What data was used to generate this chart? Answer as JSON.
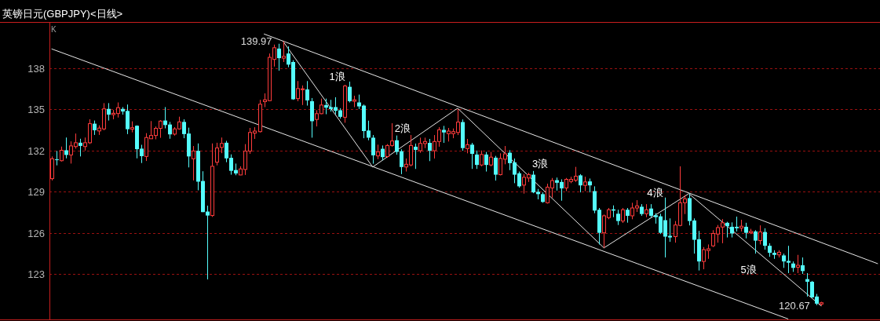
{
  "chart_data": {
    "type": "candlestick",
    "title": "英镑日元(GBPJPY)<日线>",
    "categories": [
      null,
      null,
      null,
      null,
      null,
      null,
      null,
      null,
      null,
      null,
      null,
      null,
      null,
      null,
      null,
      null,
      null,
      null,
      null,
      null,
      null,
      null,
      null,
      null,
      null,
      null,
      null,
      null,
      null,
      null,
      null,
      null,
      null,
      null,
      null,
      null,
      null,
      null,
      null,
      null,
      null,
      null,
      null,
      null,
      null,
      null,
      null,
      null,
      null,
      null,
      null,
      null,
      null,
      null,
      null,
      null,
      null,
      null,
      null,
      null,
      null,
      null,
      null,
      null,
      null,
      null,
      null,
      null,
      null,
      null,
      null,
      null,
      null,
      null,
      null,
      null,
      null,
      null,
      null,
      null,
      null,
      null,
      null,
      null,
      null,
      null,
      null,
      null,
      null,
      null,
      null,
      null,
      null,
      null,
      null,
      null,
      null,
      null,
      null,
      null,
      null,
      null,
      null,
      null,
      null,
      null,
      null,
      null,
      null,
      null,
      null,
      null,
      null,
      null,
      null,
      null,
      null,
      null,
      null,
      null,
      null,
      null,
      null,
      null,
      null,
      null,
      null,
      null,
      null,
      null,
      null,
      null,
      null,
      null,
      null,
      null,
      null,
      null,
      null,
      null,
      null,
      null,
      null,
      null,
      null,
      null,
      null,
      null,
      null,
      null,
      null,
      null,
      null,
      null,
      null,
      null,
      null,
      null,
      null,
      null,
      null,
      null,
      null,
      null,
      null,
      null,
      null,
      null,
      null,
      null,
      null,
      null,
      null,
      null,
      null,
      null
    ],
    "ohlc": [
      [
        129.95,
        131.57,
        129.82,
        131.4
      ],
      [
        131.36,
        131.97,
        130.92,
        131.3
      ],
      [
        131.26,
        132.29,
        131.2,
        132.02
      ],
      [
        132.02,
        132.95,
        131.43,
        131.68
      ],
      [
        131.68,
        132.67,
        131.05,
        132.34
      ],
      [
        132.29,
        133.24,
        132.14,
        132.57
      ],
      [
        132.57,
        132.86,
        131.57,
        132.34
      ],
      [
        132.29,
        132.95,
        132.0,
        132.57
      ],
      [
        132.57,
        134.28,
        132.48,
        133.96
      ],
      [
        133.96,
        134.19,
        133.14,
        133.48
      ],
      [
        133.43,
        133.84,
        133.14,
        133.64
      ],
      [
        133.58,
        135.46,
        133.48,
        135.04
      ],
      [
        135.04,
        135.46,
        134.19,
        134.62
      ],
      [
        134.62,
        134.96,
        134.28,
        134.72
      ],
      [
        134.7,
        135.51,
        134.41,
        135.13
      ],
      [
        135.04,
        135.17,
        134.62,
        134.85
      ],
      [
        134.89,
        135.36,
        133.2,
        133.56
      ],
      [
        133.56,
        134.13,
        133.33,
        133.67
      ],
      [
        133.81,
        133.84,
        131.43,
        132.1
      ],
      [
        132.14,
        132.42,
        131.09,
        131.59
      ],
      [
        131.57,
        133.27,
        131.24,
        132.95
      ],
      [
        132.86,
        134.15,
        132.86,
        133.1
      ],
      [
        133.1,
        133.75,
        132.82,
        133.62
      ],
      [
        133.62,
        134.22,
        132.93,
        134.15
      ],
      [
        134.19,
        135.17,
        133.62,
        133.86
      ],
      [
        133.9,
        134.09,
        132.86,
        133.18
      ],
      [
        133.2,
        133.71,
        133.09,
        133.58
      ],
      [
        133.58,
        134.47,
        133.52,
        134.09
      ],
      [
        134.09,
        134.28,
        132.9,
        133.2
      ],
      [
        133.24,
        133.67,
        130.77,
        131.57
      ],
      [
        131.4,
        132.33,
        129.82,
        131.97
      ],
      [
        131.98,
        132.52,
        129.1,
        129.73
      ],
      [
        129.78,
        130.49,
        127.51,
        127.51
      ],
      [
        127.55,
        127.98,
        122.6,
        127.26
      ],
      [
        127.26,
        132.52,
        127.16,
        130.85
      ],
      [
        131.15,
        132.57,
        130.92,
        132.19
      ],
      [
        132.23,
        132.95,
        131.81,
        132.52
      ],
      [
        132.57,
        132.71,
        131.15,
        131.43
      ],
      [
        131.47,
        131.72,
        130.24,
        130.52
      ],
      [
        130.58,
        131.05,
        130.2,
        130.33
      ],
      [
        130.22,
        130.85,
        130.2,
        130.66
      ],
      [
        130.62,
        132.47,
        130.22,
        131.96
      ],
      [
        131.96,
        133.65,
        131.76,
        133.32
      ],
      [
        133.27,
        133.7,
        132.85,
        133.42
      ],
      [
        133.38,
        135.7,
        133.32,
        135.38
      ],
      [
        135.57,
        136.17,
        135.17,
        135.7
      ],
      [
        135.64,
        139.08,
        135.6,
        138.8
      ],
      [
        138.65,
        139.73,
        138.13,
        139.5
      ],
      [
        139.44,
        139.79,
        137.83,
        138.74
      ],
      [
        138.74,
        139.97,
        138.46,
        138.87
      ],
      [
        139.08,
        139.6,
        138.08,
        138.27
      ],
      [
        138.46,
        138.59,
        135.7,
        135.74
      ],
      [
        135.79,
        137.07,
        135.6,
        136.52
      ],
      [
        136.46,
        136.75,
        135.32,
        136.5
      ],
      [
        136.46,
        137.07,
        135.28,
        135.66
      ],
      [
        135.6,
        135.83,
        132.94,
        134.14
      ],
      [
        134.27,
        134.94,
        133.76,
        134.69
      ],
      [
        134.69,
        135.79,
        134.65,
        135.32
      ],
      [
        135.32,
        135.79,
        134.65,
        135.13
      ],
      [
        135.17,
        135.7,
        134.84,
        135.03
      ],
      [
        135.17,
        135.89,
        134.65,
        134.9
      ],
      [
        134.94,
        135.09,
        134.33,
        134.46
      ],
      [
        134.43,
        136.8,
        134.03,
        136.71
      ],
      [
        136.65,
        137.03,
        135.51,
        135.6
      ],
      [
        135.6,
        136.0,
        135.17,
        135.7
      ],
      [
        135.51,
        136.08,
        135.03,
        135.22
      ],
      [
        135.28,
        135.36,
        132.9,
        133.42
      ],
      [
        133.46,
        134.18,
        132.75,
        132.94
      ],
      [
        132.94,
        133.13,
        131.04,
        131.65
      ],
      [
        131.61,
        132.43,
        131.37,
        131.9
      ],
      [
        132.13,
        132.37,
        131.29,
        131.52
      ],
      [
        131.56,
        132.47,
        131.48,
        132.37
      ],
      [
        132.37,
        133.99,
        132.28,
        132.7
      ],
      [
        132.75,
        133.1,
        131.7,
        131.9
      ],
      [
        131.95,
        132.09,
        130.28,
        130.8
      ],
      [
        130.8,
        131.42,
        130.47,
        131.0
      ],
      [
        130.95,
        133.13,
        130.85,
        132.37
      ],
      [
        132.28,
        132.51,
        130.66,
        132.05
      ],
      [
        131.99,
        132.94,
        131.84,
        132.52
      ],
      [
        132.51,
        132.94,
        132.18,
        132.66
      ],
      [
        132.56,
        132.85,
        131.23,
        131.99
      ],
      [
        131.99,
        133.13,
        131.42,
        132.66
      ],
      [
        132.66,
        133.7,
        132.28,
        133.51
      ],
      [
        133.51,
        133.8,
        132.56,
        133.32
      ],
      [
        133.23,
        133.65,
        132.66,
        133.42
      ],
      [
        133.23,
        133.61,
        132.9,
        133.38
      ],
      [
        133.32,
        135.03,
        133.13,
        134.08
      ],
      [
        134.08,
        134.27,
        131.99,
        132.18
      ],
      [
        132.14,
        132.85,
        131.8,
        132.43
      ],
      [
        132.43,
        132.56,
        130.66,
        131.76
      ],
      [
        131.71,
        132.0,
        130.66,
        130.95
      ],
      [
        130.95,
        132.0,
        130.85,
        131.71
      ],
      [
        131.71,
        131.9,
        130.47,
        130.95
      ],
      [
        130.95,
        131.9,
        130.85,
        131.52
      ],
      [
        131.48,
        131.61,
        129.81,
        130.24
      ],
      [
        130.24,
        131.8,
        130.19,
        131.42
      ],
      [
        131.37,
        132.33,
        131.0,
        131.76
      ],
      [
        131.84,
        132.03,
        130.57,
        131.08
      ],
      [
        131.14,
        131.42,
        129.62,
        130.24
      ],
      [
        130.34,
        130.47,
        129.29,
        129.39
      ],
      [
        129.48,
        130.28,
        128.86,
        130.05
      ],
      [
        130.0,
        130.38,
        129.71,
        130.24
      ],
      [
        130.24,
        130.51,
        128.89,
        128.95
      ],
      [
        128.99,
        129.2,
        128.44,
        128.82
      ],
      [
        128.82,
        128.95,
        128.19,
        128.25
      ],
      [
        128.19,
        129.58,
        128.13,
        129.33
      ],
      [
        129.27,
        130.0,
        128.57,
        129.81
      ],
      [
        129.84,
        130.03,
        129.08,
        129.65
      ],
      [
        129.71,
        129.9,
        128.34,
        129.24
      ],
      [
        129.27,
        130.0,
        129.04,
        129.9
      ],
      [
        129.75,
        130.09,
        129.62,
        129.9
      ],
      [
        129.84,
        130.81,
        129.71,
        130.13
      ],
      [
        130.19,
        130.28,
        128.95,
        129.46
      ],
      [
        129.46,
        130.09,
        129.04,
        129.71
      ],
      [
        129.75,
        129.96,
        128.95,
        129.46
      ],
      [
        129.04,
        129.39,
        127.43,
        127.62
      ],
      [
        127.68,
        127.81,
        125.15,
        126.0
      ],
      [
        126.0,
        127.33,
        124.9,
        127.24
      ],
      [
        127.11,
        127.81,
        126.99,
        127.68
      ],
      [
        127.71,
        128.0,
        127.14,
        127.62
      ],
      [
        127.39,
        127.68,
        126.57,
        126.86
      ],
      [
        126.86,
        127.81,
        126.72,
        127.68
      ],
      [
        127.68,
        127.81,
        126.74,
        127.24
      ],
      [
        127.24,
        128.19,
        126.99,
        127.81
      ],
      [
        127.81,
        128.38,
        127.52,
        127.96
      ],
      [
        127.9,
        128.09,
        127.24,
        127.37
      ],
      [
        127.39,
        128.09,
        127.14,
        127.68
      ],
      [
        127.77,
        128.09,
        127.14,
        127.24
      ],
      [
        127.28,
        127.43,
        126.67,
        127.14
      ],
      [
        127.2,
        127.39,
        125.91,
        126.0
      ],
      [
        126.92,
        128.57,
        124.2,
        125.72
      ],
      [
        125.78,
        127.05,
        125.34,
        125.66
      ],
      [
        125.72,
        126.86,
        125.28,
        126.57
      ],
      [
        126.54,
        130.85,
        126.48,
        128.19
      ],
      [
        128.19,
        128.76,
        127.37,
        128.48
      ],
      [
        128.53,
        128.82,
        126.54,
        126.86
      ],
      [
        126.9,
        127.05,
        124.48,
        125.49
      ],
      [
        125.53,
        126.14,
        123.25,
        123.91
      ],
      [
        123.91,
        124.96,
        123.34,
        124.77
      ],
      [
        124.71,
        125.15,
        124.1,
        124.83
      ],
      [
        125.05,
        126.19,
        124.96,
        125.95
      ],
      [
        125.91,
        126.57,
        125.28,
        126.38
      ],
      [
        126.42,
        127.0,
        125.24,
        126.73
      ],
      [
        126.73,
        126.8,
        125.66,
        126.48
      ],
      [
        126.44,
        126.76,
        125.66,
        125.95
      ],
      [
        126.44,
        127.18,
        126.1,
        126.33
      ],
      [
        126.35,
        126.95,
        126.1,
        126.48
      ],
      [
        126.44,
        126.73,
        125.59,
        126.0
      ],
      [
        126.0,
        126.29,
        125.91,
        126.1
      ],
      [
        126.1,
        126.19,
        124.48,
        125.43
      ],
      [
        125.43,
        126.54,
        125.15,
        126.06
      ],
      [
        126.06,
        126.33,
        124.77,
        125.05
      ],
      [
        125.05,
        125.24,
        124.25,
        124.54
      ],
      [
        124.54,
        124.73,
        124.1,
        124.39
      ],
      [
        124.39,
        124.73,
        124.2,
        124.58
      ],
      [
        124.35,
        124.48,
        123.44,
        123.91
      ],
      [
        123.95,
        125.05,
        123.06,
        123.82
      ],
      [
        123.76,
        123.91,
        123.15,
        123.44
      ],
      [
        123.49,
        124.39,
        123.06,
        123.63
      ],
      [
        123.63,
        124.2,
        123.0,
        123.21
      ],
      [
        122.62,
        123.06,
        121.35,
        122.43
      ],
      [
        122.43,
        122.49,
        121.25,
        121.29
      ],
      [
        121.35,
        121.54,
        120.72,
        120.83
      ],
      [
        120.8,
        120.97,
        120.67,
        120.9
      ],
      null,
      null,
      null,
      null,
      null,
      null,
      null,
      null,
      null,
      null,
      null,
      null
    ],
    "colors": [
      "#ff3c3c",
      "#54fcfc",
      "#ff3c3c",
      "#54fcfc",
      "#ff3c3c",
      "#ff3c3c",
      "#54fcfc",
      "#ff3c3c",
      "#ff3c3c",
      "#54fcfc",
      "#ff3c3c",
      "#ff3c3c",
      "#54fcfc",
      "#ff3c3c",
      "#ff3c3c",
      "#54fcfc",
      "#54fcfc",
      "#ff3c3c",
      "#54fcfc",
      "#54fcfc",
      "#ff3c3c",
      "#ff3c3c",
      "#ff3c3c",
      "#ff3c3c",
      "#54fcfc",
      "#54fcfc",
      "#ff3c3c",
      "#ff3c3c",
      "#54fcfc",
      "#54fcfc",
      "#ff3c3c",
      "#54fcfc",
      "#54fcfc",
      "#54fcfc",
      "#ff3c3c",
      "#ff3c3c",
      "#ff3c3c",
      "#54fcfc",
      "#54fcfc",
      "#54fcfc",
      "#ff3c3c",
      "#ff3c3c",
      "#ff3c3c",
      "#ff3c3c",
      "#ff3c3c",
      "#ff3c3c",
      "#ff3c3c",
      "#ff3c3c",
      "#54fcfc",
      "#ff3c3c",
      "#54fcfc",
      "#54fcfc",
      "#ff3c3c",
      "#ff3c3c",
      "#54fcfc",
      "#54fcfc",
      "#ff3c3c",
      "#ff3c3c",
      "#54fcfc",
      "#54fcfc",
      "#54fcfc",
      "#54fcfc",
      "#ff3c3c",
      "#54fcfc",
      "#ff3c3c",
      "#54fcfc",
      "#54fcfc",
      "#54fcfc",
      "#54fcfc",
      "#ff3c3c",
      "#54fcfc",
      "#ff3c3c",
      "#ff3c3c",
      "#54fcfc",
      "#54fcfc",
      "#ff3c3c",
      "#ff3c3c",
      "#54fcfc",
      "#ff3c3c",
      "#ff3c3c",
      "#54fcfc",
      "#ff3c3c",
      "#ff3c3c",
      "#54fcfc",
      "#ff3c3c",
      "#ff3c3c",
      "#ff3c3c",
      "#54fcfc",
      "#ff3c3c",
      "#54fcfc",
      "#54fcfc",
      "#ff3c3c",
      "#54fcfc",
      "#ff3c3c",
      "#54fcfc",
      "#ff3c3c",
      "#ff3c3c",
      "#54fcfc",
      "#54fcfc",
      "#54fcfc",
      "#ff3c3c",
      "#ff3c3c",
      "#54fcfc",
      "#54fcfc",
      "#54fcfc",
      "#ff3c3c",
      "#ff3c3c",
      "#54fcfc",
      "#54fcfc",
      "#ff3c3c",
      "#ff3c3c",
      "#ff3c3c",
      "#54fcfc",
      "#ff3c3c",
      "#54fcfc",
      "#54fcfc",
      "#54fcfc",
      "#ff3c3c",
      "#ff3c3c",
      "#54fcfc",
      "#54fcfc",
      "#ff3c3c",
      "#54fcfc",
      "#ff3c3c",
      "#ff3c3c",
      "#54fcfc",
      "#ff3c3c",
      "#54fcfc",
      "#54fcfc",
      "#54fcfc",
      "#54fcfc",
      "#54fcfc",
      "#ff3c3c",
      "#ff3c3c",
      "#ff3c3c",
      "#54fcfc",
      "#54fcfc",
      "#54fcfc",
      "#ff3c3c",
      "#ff3c3c",
      "#ff3c3c",
      "#ff3c3c",
      "#ff3c3c",
      "#54fcfc",
      "#54fcfc",
      "#54fcfc",
      "#ff3c3c",
      "#54fcfc",
      "#ff3c3c",
      "#54fcfc",
      "#ff3c3c",
      "#54fcfc",
      "#54fcfc",
      "#54fcfc",
      "#ff3c3c",
      "#54fcfc",
      "#54fcfc",
      "#54fcfc",
      "#ff3c3c",
      "#54fcfc",
      "#54fcfc",
      "#54fcfc",
      "#54fcfc",
      "#ff3c3c",
      null,
      null,
      null,
      null,
      null,
      null,
      null,
      null,
      null,
      null,
      null,
      null
    ],
    "series": [
      {
        "type": "line",
        "color": "#e8e8e8",
        "values": [
          139.41,
          null,
          null,
          null,
          null,
          null,
          null,
          null,
          null,
          null,
          null,
          null,
          null,
          null,
          null,
          null,
          null,
          null,
          null,
          null,
          null,
          null,
          null,
          null,
          null,
          null,
          null,
          null,
          null,
          null,
          null,
          null,
          null,
          null,
          null,
          null,
          null,
          null,
          null,
          null,
          null,
          null,
          null,
          null,
          null,
          null,
          null,
          null,
          null,
          null,
          null,
          null,
          null,
          null,
          null,
          null,
          null,
          null,
          null,
          null,
          null,
          null,
          null,
          null,
          null,
          null,
          null,
          null,
          null,
          null,
          null,
          null,
          null,
          null,
          null,
          null,
          null,
          null,
          null,
          null,
          null,
          null,
          null,
          null,
          null,
          null,
          null,
          null,
          null,
          null,
          null,
          null,
          null,
          null,
          null,
          null,
          null,
          null,
          null,
          null,
          null,
          null,
          null,
          null,
          null,
          null,
          null,
          null,
          null,
          null,
          null,
          null,
          null,
          null,
          null,
          null,
          null,
          null,
          null,
          null,
          null,
          null,
          null,
          null,
          null,
          null,
          null,
          null,
          null,
          null,
          null,
          null,
          null,
          null,
          null,
          null,
          null,
          null,
          null,
          null,
          null,
          null,
          null,
          null,
          null,
          null,
          null,
          null,
          null,
          null,
          null,
          null,
          null,
          null,
          null,
          null,
          119.72,
          null,
          null,
          null,
          null,
          null,
          null,
          null,
          null,
          null,
          null,
          null,
          null,
          null,
          null,
          null,
          null,
          null,
          null,
          null
        ]
      },
      {
        "type": "line",
        "color": "#e8e8e8",
        "values": [
          null,
          null,
          null,
          null,
          null,
          null,
          null,
          null,
          null,
          null,
          null,
          null,
          null,
          null,
          null,
          null,
          null,
          null,
          null,
          null,
          null,
          null,
          null,
          null,
          null,
          null,
          null,
          null,
          null,
          null,
          null,
          null,
          null,
          null,
          null,
          null,
          null,
          null,
          null,
          null,
          null,
          null,
          null,
          null,
          null,
          140.5,
          null,
          null,
          null,
          null,
          null,
          null,
          null,
          null,
          null,
          null,
          null,
          null,
          null,
          null,
          null,
          null,
          null,
          null,
          null,
          null,
          null,
          null,
          null,
          null,
          null,
          null,
          null,
          null,
          null,
          null,
          null,
          null,
          null,
          null,
          null,
          null,
          null,
          null,
          null,
          null,
          null,
          null,
          null,
          null,
          null,
          null,
          null,
          null,
          null,
          null,
          null,
          null,
          null,
          null,
          null,
          null,
          null,
          null,
          null,
          null,
          null,
          null,
          null,
          null,
          null,
          null,
          null,
          null,
          null,
          null,
          null,
          null,
          null,
          null,
          null,
          null,
          null,
          null,
          null,
          null,
          null,
          null,
          null,
          null,
          null,
          null,
          null,
          null,
          null,
          null,
          null,
          null,
          null,
          null,
          null,
          null,
          null,
          null,
          null,
          null,
          null,
          null,
          null,
          null,
          null,
          null,
          null,
          null,
          null,
          null,
          null,
          null,
          null,
          null,
          null,
          null,
          null,
          null,
          null,
          null,
          null,
          null,
          null,
          null,
          null,
          null,
          null,
          null,
          null,
          123.75
        ]
      },
      {
        "type": "line",
        "color": "#e8e8e8",
        "values": [
          null,
          null,
          null,
          null,
          null,
          null,
          null,
          null,
          null,
          null,
          null,
          null,
          null,
          null,
          null,
          null,
          null,
          null,
          null,
          null,
          null,
          null,
          null,
          null,
          null,
          null,
          null,
          null,
          null,
          null,
          null,
          null,
          null,
          null,
          null,
          null,
          null,
          null,
          null,
          null,
          null,
          null,
          null,
          null,
          null,
          null,
          null,
          null,
          null,
          139.97,
          null,
          null,
          null,
          null,
          null,
          null,
          null,
          null,
          null,
          null,
          null,
          null,
          null,
          null,
          null,
          null,
          null,
          null,
          130.8,
          null,
          null,
          null,
          null,
          null,
          null,
          null,
          null,
          null,
          null,
          null,
          null,
          null,
          null,
          null,
          null,
          null,
          135.09,
          null,
          null,
          null,
          null,
          null,
          null,
          null,
          null,
          null,
          null,
          null,
          null,
          null,
          null,
          null,
          null,
          null,
          null,
          null,
          null,
          null,
          null,
          null,
          null,
          null,
          null,
          null,
          null,
          null,
          null,
          124.9,
          null,
          null,
          null,
          null,
          null,
          null,
          null,
          null,
          null,
          null,
          null,
          null,
          null,
          null,
          null,
          null,
          null,
          128.86,
          null,
          null,
          null,
          null,
          null,
          null,
          null,
          null,
          null,
          null,
          null,
          null,
          null,
          null,
          null,
          null,
          null,
          null,
          null,
          null,
          null,
          null,
          null,
          null,
          null,
          null,
          null,
          120.67,
          null,
          null,
          null,
          null,
          null,
          null,
          null,
          null,
          null,
          null,
          null,
          null
        ]
      }
    ],
    "ylim": [
      119.68,
      141.38
    ],
    "yticks": [
      123,
      126,
      129,
      132,
      135,
      138
    ],
    "grid": "y",
    "tick_labels": "y",
    "annotations": [
      "K",
      "1浪",
      "2浪",
      "3浪",
      "4浪",
      "5浪",
      "139.97",
      "120.67"
    ]
  }
}
